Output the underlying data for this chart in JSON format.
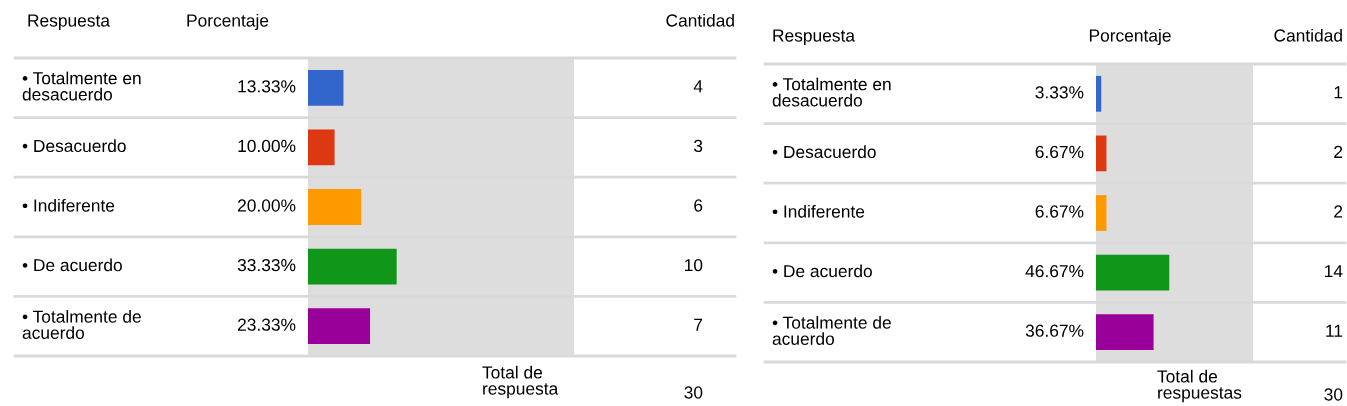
{
  "chart_data": [
    {
      "type": "bar",
      "orientation": "horizontal",
      "legend": false,
      "categories": [
        "• Totalmente en\ndesacuerdo",
        "• Desacuerdo",
        "• Indiferente",
        "• De acuerdo",
        "• Totalmente de\nacuerdo"
      ],
      "values": [
        13.33,
        10.0,
        20.0,
        33.33,
        23.33
      ],
      "colors": [
        "#3366cc",
        "#dc3912",
        "#ff9900",
        "#109618",
        "#990099"
      ],
      "value_labels": [
        "13.33%",
        "10.00%",
        "20.00%",
        "33.33%",
        "23.33%"
      ],
      "xlim": [
        0,
        100
      ],
      "annotations": [
        "Respuesta",
        "Porcentaje",
        "Cantidad",
        "4",
        "3",
        "6",
        "10",
        "7",
        "Total de\nrespuesta",
        "30"
      ]
    },
    {
      "type": "bar",
      "orientation": "horizontal",
      "legend": false,
      "categories": [
        "• Totalmente en\ndesacuerdo",
        "• Desacuerdo",
        "• Indiferente",
        "• De acuerdo",
        "• Totalmente de\nacuerdo"
      ],
      "values": [
        3.33,
        6.67,
        6.67,
        46.67,
        36.67
      ],
      "colors": [
        "#3366cc",
        "#dc3912",
        "#ff9900",
        "#109618",
        "#990099"
      ],
      "value_labels": [
        "3.33%",
        "6.67%",
        "6.67%",
        "46.67%",
        "36.67%"
      ],
      "xlim": [
        0,
        100
      ],
      "annotations": [
        "Respuesta",
        "Porcentaje",
        "Cantidad",
        "1",
        "2",
        "2",
        "14",
        "11",
        "Total de\nrespuestas",
        "30"
      ]
    }
  ]
}
